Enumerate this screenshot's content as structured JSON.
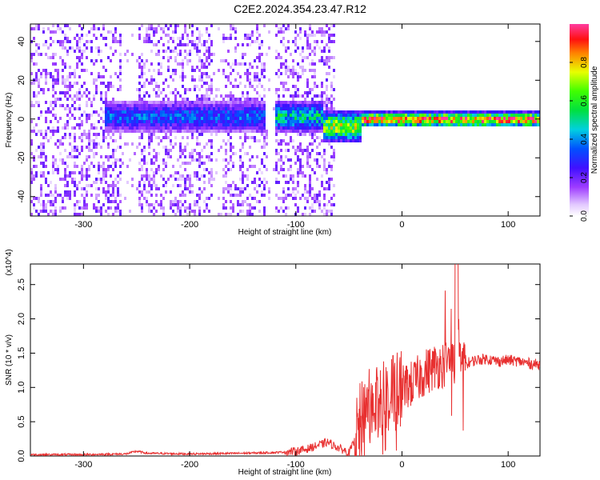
{
  "title": "C2E2.2024.354.23.47.R12",
  "chart_data": [
    {
      "type": "heatmap",
      "xlabel": "Height of straight line (km)",
      "ylabel": "Frequency (Hz)",
      "xlim": [
        -350,
        130
      ],
      "ylim": [
        -50,
        49
      ],
      "xticks": [
        -300,
        -200,
        -100,
        0,
        100
      ],
      "yticks": [
        -40,
        -20,
        0,
        20,
        40
      ],
      "colorbar": {
        "label": "Normalized spectral amplitude",
        "ticks": [
          0.0,
          0.2,
          0.4,
          0.6,
          0.8
        ],
        "range": [
          0,
          1
        ],
        "colormap": "rainbow (white-lavender → purple → blue → cyan → green → yellow → red → pink)"
      },
      "features": [
        {
          "x_range": [
            -350,
            -65
          ],
          "description": "broad scattered low-amplitude noise across all frequencies"
        },
        {
          "x_range": [
            -280,
            -130
          ],
          "center_freq": 2,
          "amplitude": 0.4
        },
        {
          "x_range": [
            -120,
            -75
          ],
          "center_freq": 2,
          "amplitude": 0.55
        },
        {
          "x_range": [
            -75,
            -40
          ],
          "center_freq": -3,
          "amplitude": 0.8
        },
        {
          "x_range": [
            -40,
            130
          ],
          "center_freq": 0.5,
          "amplitude": 1.0
        }
      ]
    },
    {
      "type": "line",
      "xlabel": "Height of straight line (km)",
      "ylabel": "SNR (10 * v/v)",
      "y_multiplier": "(x10^4)",
      "xlim": [
        -350,
        130
      ],
      "ylim": [
        0,
        2.8
      ],
      "xticks": [
        -300,
        -200,
        -100,
        0,
        100
      ],
      "yticks": [
        "0.0",
        "0.5",
        "1.0",
        "1.5",
        "2.0",
        "2.5"
      ],
      "series": [
        {
          "color": "#e83030",
          "x": [
            -350,
            -300,
            -260,
            -250,
            -240,
            -200,
            -150,
            -120,
            -100,
            -90,
            -80,
            -70,
            -60,
            -50,
            -45,
            -40,
            -35,
            -30,
            -25,
            -20,
            -10,
            0,
            10,
            20,
            30,
            40,
            45,
            50,
            52,
            55,
            60,
            70,
            80,
            90,
            100,
            110,
            120,
            130
          ],
          "values": [
            0.02,
            0.02,
            0.03,
            0.07,
            0.04,
            0.03,
            0.04,
            0.05,
            0.07,
            0.1,
            0.15,
            0.2,
            0.12,
            0.05,
            0.2,
            0.5,
            0.7,
            0.9,
            0.85,
            0.8,
            0.95,
            1.0,
            1.05,
            1.2,
            1.3,
            1.35,
            1.4,
            1.35,
            2.2,
            1.4,
            1.35,
            1.4,
            1.42,
            1.38,
            1.4,
            1.38,
            1.35,
            1.33
          ]
        }
      ]
    }
  ]
}
